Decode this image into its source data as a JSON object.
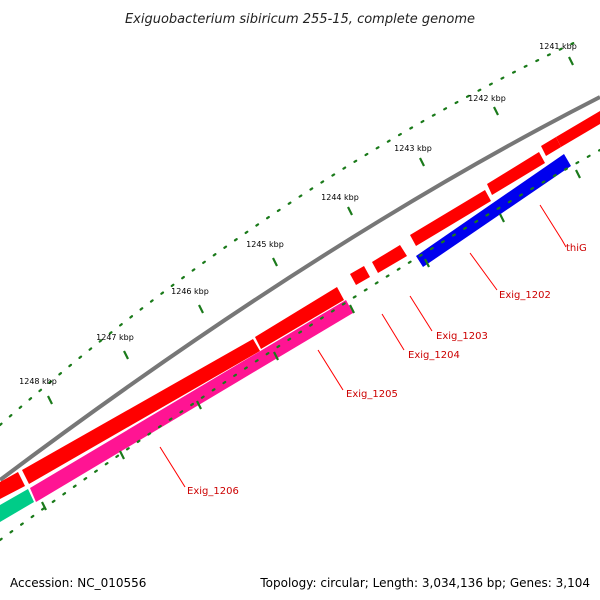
{
  "title": "Exiguobacterium sibiricum 255-15, complete genome",
  "accession": "Accession: NC_010556",
  "topology": "Topology: circular; Length: 3,034,136 bp; Genes: 3,104",
  "ticks": [
    "1241 kbp",
    "1242 kbp",
    "1243 kbp",
    "1244 kbp",
    "1245 kbp",
    "1246 kbp",
    "1247 kbp",
    "1248 kbp"
  ],
  "genes": [
    {
      "name": "thiG",
      "strand": "minus",
      "color": "#0000ee"
    },
    {
      "name": "Exig_1202",
      "strand": "plus",
      "color": "#ff0000"
    },
    {
      "name": "Exig_1203",
      "strand": "plus",
      "color": "#ff0000"
    },
    {
      "name": "Exig_1204",
      "strand": "plus",
      "color": "#ff0000"
    },
    {
      "name": "Exig_1205",
      "strand": "minus",
      "color": "#ff1493"
    },
    {
      "name": "Exig_1206",
      "strand": "plus",
      "color": "#ff0000"
    }
  ],
  "colors": {
    "backbone": "#777777",
    "tick": "#1a7a1a",
    "label_line": "#ff0000",
    "minus_teal": "#00cc88"
  }
}
